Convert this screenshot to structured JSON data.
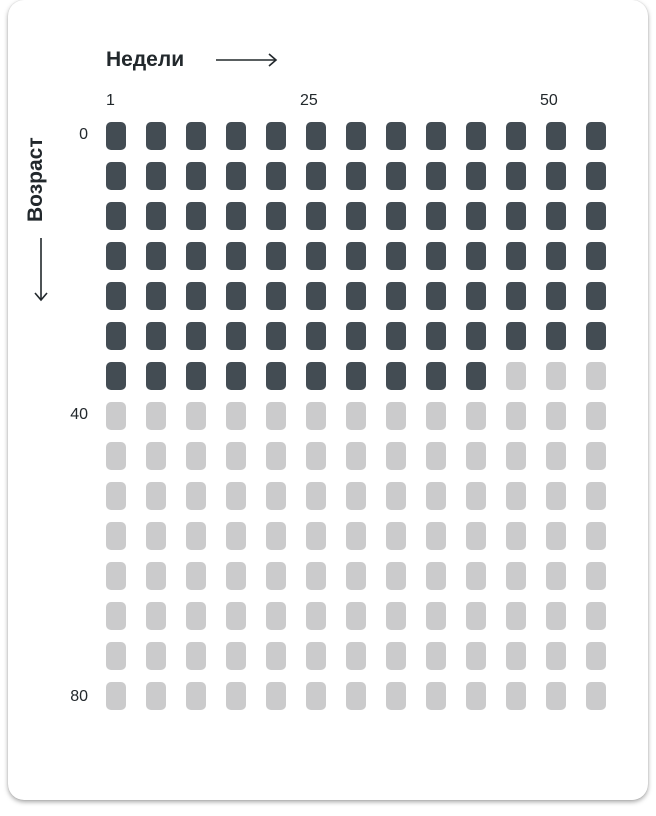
{
  "header": {
    "weeks_title": "Недели",
    "age_title": "Возраст"
  },
  "week_labels": [
    "1",
    "25",
    "50"
  ],
  "age_labels": [
    "0",
    "40",
    "80"
  ],
  "grid": {
    "rows": 15,
    "columns": 13,
    "filled_cells": 88
  },
  "colors": {
    "filled": "#434c53",
    "empty": "#cbcbcc"
  },
  "icons": {
    "weeks_arrow": "arrow-right-icon",
    "age_arrow": "arrow-down-icon"
  }
}
